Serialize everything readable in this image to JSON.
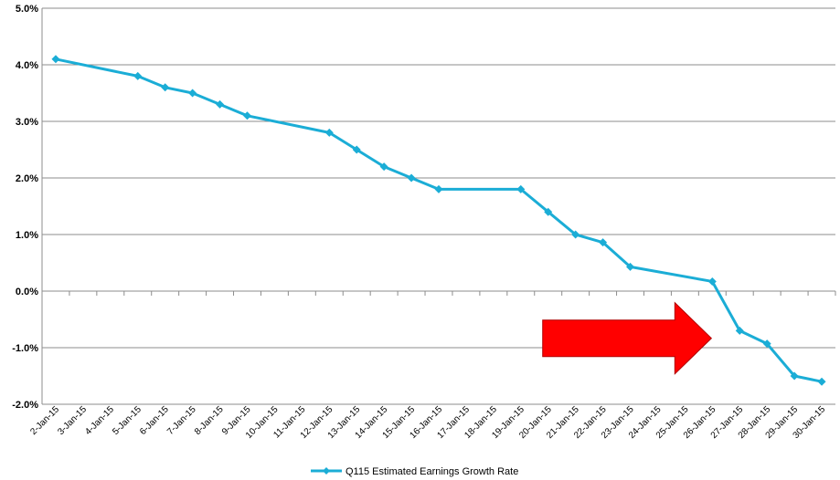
{
  "chart_data": {
    "type": "line",
    "title": "",
    "xlabel": "",
    "ylabel": "",
    "ylim": [
      -2.0,
      5.0
    ],
    "y_ticks": [
      "-2.0%",
      "-1.0%",
      "0.0%",
      "1.0%",
      "2.0%",
      "3.0%",
      "4.0%",
      "5.0%"
    ],
    "y_tick_values": [
      -2,
      -1,
      0,
      1,
      2,
      3,
      4,
      5
    ],
    "categories": [
      "2-Jan-15",
      "3-Jan-15",
      "4-Jan-15",
      "5-Jan-15",
      "6-Jan-15",
      "7-Jan-15",
      "8-Jan-15",
      "9-Jan-15",
      "10-Jan-15",
      "11-Jan-15",
      "12-Jan-15",
      "13-Jan-15",
      "14-Jan-15",
      "15-Jan-15",
      "16-Jan-15",
      "17-Jan-15",
      "18-Jan-15",
      "19-Jan-15",
      "20-Jan-15",
      "21-Jan-15",
      "22-Jan-15",
      "23-Jan-15",
      "24-Jan-15",
      "25-Jan-15",
      "26-Jan-15",
      "27-Jan-15",
      "28-Jan-15",
      "29-Jan-15",
      "30-Jan-15"
    ],
    "series": [
      {
        "name": "Q115 Estimated Earnings Growth Rate",
        "color": "#1BADD6",
        "values": [
          4.1,
          null,
          null,
          3.8,
          3.6,
          3.5,
          3.3,
          3.1,
          null,
          null,
          2.8,
          2.5,
          2.2,
          2.0,
          1.8,
          null,
          null,
          1.8,
          1.4,
          1.0,
          0.86,
          0.43,
          null,
          null,
          0.17,
          -0.7,
          -0.93,
          -1.5,
          -1.6
        ]
      }
    ],
    "grid": true,
    "legend": "bottom",
    "annotation": {
      "type": "arrow",
      "color": "#FF0000",
      "x_start": "20-Jan-15",
      "x_end": "26-Jan-15",
      "y": -0.85
    }
  }
}
